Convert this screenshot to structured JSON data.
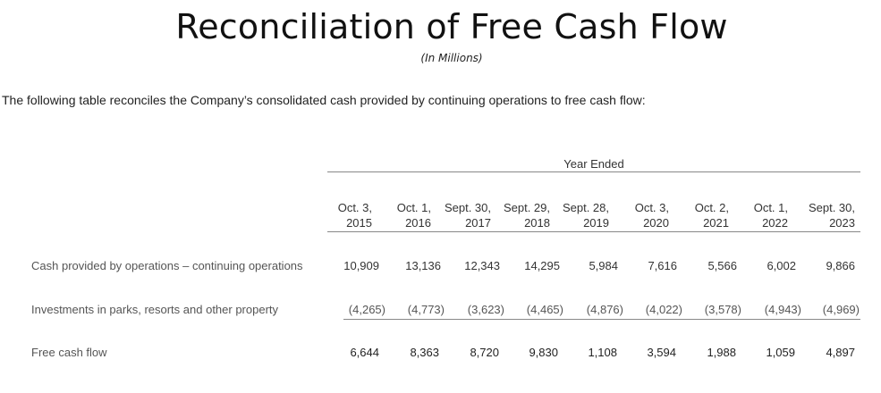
{
  "title": "Reconciliation of Free Cash Flow",
  "subtitle": "(In Millions)",
  "intro": "The following table reconciles the Company’s consolidated cash provided by continuing operations to free cash flow:",
  "table": {
    "group_header": "Year Ended",
    "columns": [
      {
        "line1": "Oct. 3,",
        "line2": "2015"
      },
      {
        "line1": "Oct. 1,",
        "line2": "2016"
      },
      {
        "line1": "Sept. 30,",
        "line2": "2017"
      },
      {
        "line1": "Sept. 29,",
        "line2": "2018"
      },
      {
        "line1": "Sept. 28,",
        "line2": "2019"
      },
      {
        "line1": "Oct. 3,",
        "line2": "2020"
      },
      {
        "line1": "Oct. 2,",
        "line2": "2021"
      },
      {
        "line1": "Oct. 1,",
        "line2": "2022"
      },
      {
        "line1": "Sept. 30,",
        "line2": "2023"
      }
    ],
    "rows": [
      {
        "label": "Cash provided by operations – continuing operations",
        "values": [
          "10,909",
          "13,136",
          "12,343",
          "14,295",
          "5,984",
          "7,616",
          "5,566",
          "6,002",
          "9,866"
        ]
      },
      {
        "label": "Investments in parks, resorts and other property",
        "values": [
          "(4,265)",
          "(4,773)",
          "(3,623)",
          "(4,465)",
          "(4,876)",
          "(4,022)",
          "(3,578)",
          "(4,943)",
          "(4,969)"
        ]
      },
      {
        "label": "Free cash flow",
        "values": [
          "6,644",
          "8,363",
          "8,720",
          "9,830",
          "1,108",
          "3,594",
          "1,988",
          "1,059",
          "4,897"
        ]
      }
    ]
  }
}
